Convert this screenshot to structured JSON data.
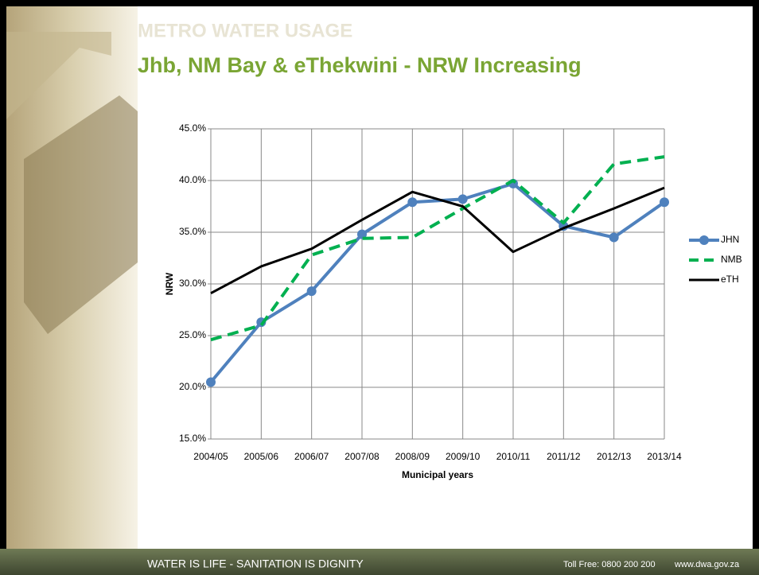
{
  "header": {
    "section": "METRO WATER USAGE",
    "title": "Jhb, NM Bay & eThekwini - NRW Increasing"
  },
  "chart_data": {
    "type": "line",
    "x_label": "Municipal years",
    "y_label": "NRW",
    "categories": [
      "2004/05",
      "2005/06",
      "2006/07",
      "2007/08",
      "2008/09",
      "2009/10",
      "2010/11",
      "2011/12",
      "2012/13",
      "2013/14"
    ],
    "series": [
      {
        "name": "JHN",
        "color": "#4f81bd",
        "width": 4,
        "markers": true,
        "dashed": false,
        "values": [
          20.5,
          26.3,
          29.3,
          34.8,
          37.9,
          38.2,
          39.7,
          35.6,
          34.5,
          37.9
        ]
      },
      {
        "name": "NMB",
        "color": "#00b050",
        "width": 4,
        "markers": false,
        "dashed": true,
        "values": [
          24.6,
          26.0,
          32.8,
          34.4,
          34.5,
          37.3,
          40.0,
          35.9,
          41.6,
          42.3
        ]
      },
      {
        "name": "eTH",
        "color": "#000000",
        "width": 3,
        "markers": false,
        "dashed": false,
        "values": [
          29.1,
          31.7,
          33.4,
          36.2,
          38.9,
          37.5,
          33.1,
          35.4,
          37.3,
          39.3
        ]
      }
    ],
    "ylim": [
      15,
      45
    ],
    "yticks": [
      {
        "value": 15,
        "label": "15.0%"
      },
      {
        "value": 20,
        "label": "20.0%"
      },
      {
        "value": 25,
        "label": "25.0%"
      },
      {
        "value": 30,
        "label": "30.0%"
      },
      {
        "value": 35,
        "label": "35.0%"
      },
      {
        "value": 40,
        "label": "40.0%"
      },
      {
        "value": 45,
        "label": "45.0%"
      }
    ],
    "grid": true,
    "legend": "right"
  },
  "footer": {
    "slogan": "WATER IS LIFE - SANITATION IS DIGNITY",
    "phone": "Toll Free: 0800 200 200",
    "website": "www.dwa.gov.za"
  }
}
